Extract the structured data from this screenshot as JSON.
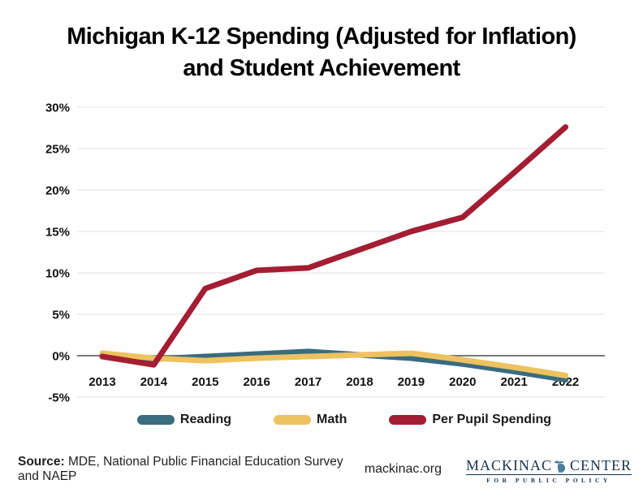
{
  "title": {
    "line1": "Michigan K-12 Spending (Adjusted for Inflation)",
    "line2": "and Student Achievement"
  },
  "chart_data": {
    "type": "line",
    "title": "Michigan K-12 Spending (Adjusted for Inflation) and Student Achievement",
    "categories": [
      "2013",
      "2014",
      "2015",
      "2016",
      "2017",
      "2018",
      "2019",
      "2020",
      "2021",
      "2022"
    ],
    "series": [
      {
        "name": "Reading",
        "color": "#3a6c80",
        "values": [
          0.0,
          -0.4,
          -0.1,
          0.2,
          0.5,
          0.1,
          -0.3,
          -1.0,
          -1.9,
          -2.9
        ]
      },
      {
        "name": "Math",
        "color": "#edc25f",
        "values": [
          0.3,
          -0.3,
          -0.6,
          -0.3,
          -0.1,
          0.1,
          0.3,
          -0.5,
          -1.4,
          -2.4
        ]
      },
      {
        "name": "Per Pupil Spending",
        "color": "#a31e33",
        "values": [
          -0.1,
          -1.1,
          8.1,
          10.3,
          10.6,
          12.8,
          15.0,
          16.7,
          22.1,
          27.6
        ]
      }
    ],
    "yticks": [
      {
        "value": 30,
        "label": "30%"
      },
      {
        "value": 25,
        "label": "25%"
      },
      {
        "value": 20,
        "label": "20%"
      },
      {
        "value": 15,
        "label": "15%"
      },
      {
        "value": 10,
        "label": "10%"
      },
      {
        "value": 5,
        "label": "5%"
      },
      {
        "value": 0,
        "label": "0%"
      },
      {
        "value": -5,
        "label": "-5%"
      }
    ],
    "ylim": [
      -5,
      30
    ],
    "grid": true,
    "legend_position": "bottom"
  },
  "colors": {
    "grid": "#e8e8e8",
    "zero_line": "#4d4d4d",
    "axis_text": "#111111",
    "logo_navy": "#16334d",
    "logo_blue": "#4a7e9b"
  },
  "footer": {
    "source_label": "Source:",
    "source_text": " MDE, National Public Financial Education Survey and NAEP",
    "website": "mackinac.org",
    "logo": {
      "word_left": "MACKINAC",
      "word_right": "CENTER",
      "tagline": "FOR PUBLIC POLICY"
    }
  }
}
